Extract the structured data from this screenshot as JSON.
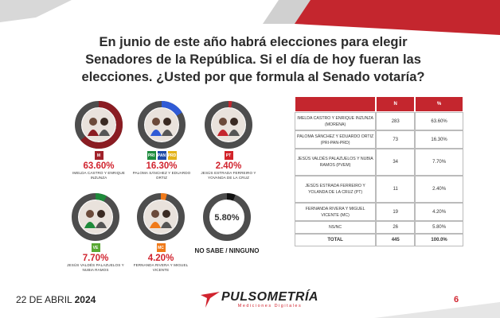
{
  "title_lines": [
    "En junio de este año habrá elecciones para elegir",
    "Senadores de la República. Si el día de hoy fueran las",
    "elecciones. ¿Usted por que formula al Senado votaría?"
  ],
  "table": {
    "headers": [
      "",
      "N",
      "%"
    ],
    "rows": [
      {
        "name": "IMELDA CASTRO Y ENRIQUE INZUNZA (MORENA)",
        "n": "283",
        "pct": "63.60%"
      },
      {
        "name": "PALOMA SÁNCHEZ Y EDUARDO ORTIZ (PRI-PAN-PRD)",
        "n": "73",
        "pct": "16.30%"
      },
      {
        "name": "JESÚS VALDÉS PALAZUELOS Y NUBIA RAMOS (PVEM)",
        "n": "34",
        "pct": "7.70%"
      },
      {
        "name": "JESÚS ESTRADA FERREIRO Y YOLANDA DE LA CRUZ (PT)",
        "n": "11",
        "pct": "2.40%"
      },
      {
        "name": "FERNANDA RIVERA Y MIGUEL VICENTE (MC)",
        "n": "19",
        "pct": "4.20%"
      },
      {
        "name": "NS/NC",
        "n": "26",
        "pct": "5.80%"
      }
    ],
    "total": {
      "name": "TOTAL",
      "n": "445",
      "pct": "100.0%"
    }
  },
  "chart_data": {
    "type": "pie",
    "title": "",
    "categories": [
      "IMELDA CASTRO Y ENRIQUE INZUNZA",
      "PALOMA SÁNCHEZ Y EDUARDO ORTIZ",
      "JESÚS ESTRADA FERREIRO Y YOVANDA DE LA CRUZ",
      "JESÚS VALDÉS PALAZUELOS Y NUBIA RAMOS",
      "FERNANDA RIVERA Y MIGUEL VICENTE",
      "NO SABE / NINGUNO"
    ],
    "values": [
      63.6,
      16.3,
      2.4,
      7.7,
      4.2,
      5.8
    ],
    "labels": [
      "63.60%",
      "16.30%",
      "2.40%",
      "7.70%",
      "4.20%",
      "5.80%"
    ],
    "colors": [
      "#8a1c22",
      "#2f5bd6",
      "#c4262e",
      "#1e8a3a",
      "#f07a1a",
      "#111111"
    ],
    "track_color": "#4d4d4d",
    "parties": [
      [
        {
          "text": "M",
          "color": "#a0222a"
        }
      ],
      [
        {
          "text": "PRI",
          "color": "#1c8b3c"
        },
        {
          "text": "PAN",
          "color": "#1f4aa8"
        },
        {
          "text": "PRD",
          "color": "#e3b21a"
        }
      ],
      [
        {
          "text": "PT",
          "color": "#d2232a"
        }
      ],
      [
        {
          "text": "VE",
          "color": "#58a832"
        }
      ],
      [
        {
          "text": "MC",
          "color": "#f07a1a"
        }
      ],
      []
    ]
  },
  "footer": {
    "date_prefix": "22 DE ABRIL",
    "date_year": "2024",
    "brand": "PULSOMETRÍA",
    "brand_sub": "Mediciones Digitales",
    "page": "6"
  },
  "colors": {
    "accent": "#c4262e",
    "pct_text": "#d1242f",
    "dark": "#2b2b2b"
  }
}
